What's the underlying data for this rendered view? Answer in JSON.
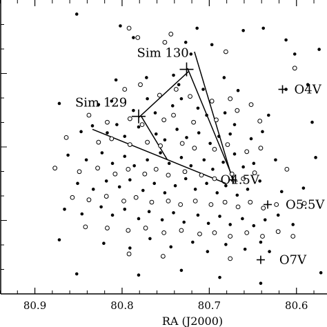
{
  "chart_data": {
    "type": "scatter",
    "title": "",
    "xlabel": "RA (J2000)",
    "ylabel": "",
    "x_reversed": true,
    "xlim": [
      80.94,
      80.565
    ],
    "ylim": [
      -70.235,
      -69.985
    ],
    "xticks": [
      {
        "value": 80.9,
        "label": "80.9"
      },
      {
        "value": 80.8,
        "label": "80.8"
      },
      {
        "value": 80.7,
        "label": "80.7"
      },
      {
        "value": 80.6,
        "label": "80.6"
      }
    ],
    "grid": false,
    "legend": "none",
    "series": [
      {
        "marker": "filled-circle",
        "points": [
          [
            80.852,
            -69.997
          ],
          [
            80.802,
            -70.007
          ],
          [
            80.787,
            -70.017
          ],
          [
            80.727,
            -70.021
          ],
          [
            80.721,
            -70.031
          ],
          [
            80.714,
            -70.009
          ],
          [
            80.697,
            -70.023
          ],
          [
            80.661,
            -70.011
          ],
          [
            80.638,
            -70.009
          ],
          [
            80.612,
            -70.019
          ],
          [
            80.602,
            -70.031
          ],
          [
            80.574,
            -70.027
          ],
          [
            80.807,
            -70.053
          ],
          [
            80.772,
            -70.051
          ],
          [
            80.741,
            -70.049
          ],
          [
            80.735,
            -70.057
          ],
          [
            80.707,
            -70.061
          ],
          [
            80.683,
            -70.051
          ],
          [
            80.667,
            -70.062
          ],
          [
            80.612,
            -70.061
          ],
          [
            80.587,
            -70.057
          ],
          [
            80.872,
            -70.073
          ],
          [
            80.827,
            -70.074
          ],
          [
            80.812,
            -70.071
          ],
          [
            80.787,
            -70.079
          ],
          [
            80.771,
            -70.069
          ],
          [
            80.762,
            -70.081
          ],
          [
            80.742,
            -70.075
          ],
          [
            80.732,
            -70.069
          ],
          [
            80.713,
            -70.077
          ],
          [
            80.703,
            -70.083
          ],
          [
            80.682,
            -70.081
          ],
          [
            80.671,
            -70.091
          ],
          [
            80.632,
            -70.083
          ],
          [
            80.582,
            -70.089
          ],
          [
            80.847,
            -70.097
          ],
          [
            80.834,
            -70.092
          ],
          [
            80.817,
            -70.098
          ],
          [
            80.806,
            -70.091
          ],
          [
            80.797,
            -70.101
          ],
          [
            80.781,
            -70.093
          ],
          [
            80.761,
            -70.099
          ],
          [
            80.751,
            -70.104
          ],
          [
            80.737,
            -70.095
          ],
          [
            80.726,
            -70.102
          ],
          [
            80.712,
            -70.098
          ],
          [
            80.699,
            -70.107
          ],
          [
            80.689,
            -70.101
          ],
          [
            80.676,
            -70.099
          ],
          [
            80.652,
            -70.103
          ],
          [
            80.639,
            -70.097
          ],
          [
            80.862,
            -70.117
          ],
          [
            80.841,
            -70.121
          ],
          [
            80.823,
            -70.115
          ],
          [
            80.811,
            -70.124
          ],
          [
            80.797,
            -70.118
          ],
          [
            80.786,
            -70.126
          ],
          [
            80.771,
            -70.121
          ],
          [
            80.756,
            -70.115
          ],
          [
            80.746,
            -70.124
          ],
          [
            80.732,
            -70.119
          ],
          [
            80.721,
            -70.126
          ],
          [
            80.706,
            -70.121
          ],
          [
            80.696,
            -70.129
          ],
          [
            80.684,
            -70.123
          ],
          [
            80.671,
            -70.116
          ],
          [
            80.661,
            -70.127
          ],
          [
            80.649,
            -70.124
          ],
          [
            80.624,
            -70.121
          ],
          [
            80.578,
            -70.119
          ],
          [
            80.851,
            -70.141
          ],
          [
            80.833,
            -70.146
          ],
          [
            80.818,
            -70.139
          ],
          [
            80.803,
            -70.144
          ],
          [
            80.791,
            -70.138
          ],
          [
            80.776,
            -70.147
          ],
          [
            80.763,
            -70.141
          ],
          [
            80.751,
            -70.149
          ],
          [
            80.739,
            -70.143
          ],
          [
            80.727,
            -70.137
          ],
          [
            80.716,
            -70.146
          ],
          [
            80.703,
            -70.141
          ],
          [
            80.691,
            -70.149
          ],
          [
            80.681,
            -70.143
          ],
          [
            80.668,
            -70.151
          ],
          [
            80.656,
            -70.146
          ],
          [
            80.642,
            -70.139
          ],
          [
            80.617,
            -70.148
          ],
          [
            80.592,
            -70.145
          ],
          [
            80.866,
            -70.163
          ],
          [
            80.846,
            -70.167
          ],
          [
            80.824,
            -70.161
          ],
          [
            80.811,
            -70.168
          ],
          [
            80.797,
            -70.163
          ],
          [
            80.781,
            -70.171
          ],
          [
            80.769,
            -70.165
          ],
          [
            80.754,
            -70.172
          ],
          [
            80.741,
            -70.166
          ],
          [
            80.729,
            -70.174
          ],
          [
            80.713,
            -70.168
          ],
          [
            80.701,
            -70.175
          ],
          [
            80.688,
            -70.169
          ],
          [
            80.676,
            -70.176
          ],
          [
            80.662,
            -70.171
          ],
          [
            80.649,
            -70.177
          ],
          [
            80.636,
            -70.172
          ],
          [
            80.621,
            -70.168
          ],
          [
            80.604,
            -70.176
          ],
          [
            80.872,
            -70.189
          ],
          [
            80.821,
            -70.192
          ],
          [
            80.791,
            -70.196
          ],
          [
            80.768,
            -70.188
          ],
          [
            80.744,
            -70.195
          ],
          [
            80.719,
            -70.191
          ],
          [
            80.702,
            -70.199
          ],
          [
            80.681,
            -70.193
          ],
          [
            80.659,
            -70.197
          ],
          [
            80.641,
            -70.191
          ],
          [
            80.631,
            -70.199
          ],
          [
            80.852,
            -70.218
          ],
          [
            80.781,
            -70.219
          ],
          [
            80.732,
            -70.215
          ],
          [
            80.688,
            -70.221
          ],
          [
            80.641,
            -70.226
          ],
          [
            80.572,
            -70.217
          ]
        ]
      },
      {
        "marker": "open-circle",
        "points": [
          [
            80.792,
            -70.009
          ],
          [
            80.782,
            -70.017
          ],
          [
            80.751,
            -70.021
          ],
          [
            80.744,
            -70.014
          ],
          [
            80.681,
            -70.029
          ],
          [
            80.602,
            -70.043
          ],
          [
            80.797,
            -70.061
          ],
          [
            80.779,
            -70.057
          ],
          [
            80.757,
            -70.066
          ],
          [
            80.738,
            -70.061
          ],
          [
            80.722,
            -70.067
          ],
          [
            80.697,
            -70.071
          ],
          [
            80.676,
            -70.069
          ],
          [
            80.652,
            -70.074
          ],
          [
            80.838,
            -70.083
          ],
          [
            80.817,
            -70.089
          ],
          [
            80.791,
            -70.086
          ],
          [
            80.777,
            -70.091
          ],
          [
            80.752,
            -70.087
          ],
          [
            80.741,
            -70.083
          ],
          [
            80.718,
            -70.089
          ],
          [
            80.692,
            -70.087
          ],
          [
            80.668,
            -70.079
          ],
          [
            80.642,
            -70.088
          ],
          [
            80.864,
            -70.102
          ],
          [
            80.827,
            -70.106
          ],
          [
            80.812,
            -70.103
          ],
          [
            80.791,
            -70.108
          ],
          [
            80.771,
            -70.106
          ],
          [
            80.756,
            -70.109
          ],
          [
            80.731,
            -70.107
          ],
          [
            80.717,
            -70.111
          ],
          [
            80.694,
            -70.112
          ],
          [
            80.679,
            -70.108
          ],
          [
            80.657,
            -70.114
          ],
          [
            80.641,
            -70.111
          ],
          [
            80.877,
            -70.128
          ],
          [
            80.849,
            -70.131
          ],
          [
            80.828,
            -70.128
          ],
          [
            80.808,
            -70.133
          ],
          [
            80.793,
            -70.129
          ],
          [
            80.774,
            -70.133
          ],
          [
            80.761,
            -70.129
          ],
          [
            80.747,
            -70.134
          ],
          [
            80.728,
            -70.131
          ],
          [
            80.709,
            -70.134
          ],
          [
            80.694,
            -70.137
          ],
          [
            80.674,
            -70.133
          ],
          [
            80.661,
            -70.137
          ],
          [
            80.648,
            -70.132
          ],
          [
            80.611,
            -70.129
          ],
          [
            80.857,
            -70.153
          ],
          [
            80.838,
            -70.155
          ],
          [
            80.818,
            -70.152
          ],
          [
            80.798,
            -70.156
          ],
          [
            80.784,
            -70.153
          ],
          [
            80.766,
            -70.157
          ],
          [
            80.747,
            -70.156
          ],
          [
            80.733,
            -70.159
          ],
          [
            80.716,
            -70.156
          ],
          [
            80.698,
            -70.159
          ],
          [
            80.682,
            -70.157
          ],
          [
            80.667,
            -70.161
          ],
          [
            80.653,
            -70.157
          ],
          [
            80.638,
            -70.162
          ],
          [
            80.623,
            -70.159
          ],
          [
            80.591,
            -70.158
          ],
          [
            80.842,
            -70.178
          ],
          [
            80.817,
            -70.179
          ],
          [
            80.793,
            -70.181
          ],
          [
            80.773,
            -70.179
          ],
          [
            80.752,
            -70.183
          ],
          [
            80.732,
            -70.181
          ],
          [
            80.711,
            -70.184
          ],
          [
            80.694,
            -70.183
          ],
          [
            80.676,
            -70.186
          ],
          [
            80.657,
            -70.183
          ],
          [
            80.639,
            -70.186
          ],
          [
            80.621,
            -70.182
          ],
          [
            80.604,
            -70.186
          ],
          [
            80.792,
            -70.201
          ],
          [
            80.753,
            -70.203
          ],
          [
            80.676,
            -70.205
          ]
        ]
      }
    ],
    "lines": [
      {
        "from": [
          80.725,
          -70.043
        ],
        "to": [
          80.672,
          -70.138
        ]
      },
      {
        "from": [
          80.724,
          -70.046
        ],
        "to": [
          80.781,
          -70.085
        ]
      },
      {
        "from": [
          80.717,
          -70.029
        ],
        "to": [
          80.672,
          -70.141
        ]
      },
      {
        "from": [
          80.834,
          -70.095
        ],
        "to": [
          80.681,
          -70.141
        ]
      },
      {
        "from": [
          80.778,
          -70.084
        ],
        "to": [
          80.748,
          -70.121
        ]
      }
    ],
    "markers": [
      {
        "x": 80.726,
        "y": -70.044,
        "label": "Sim 130"
      },
      {
        "x": 80.781,
        "y": -70.084,
        "label": "Sim 129"
      },
      {
        "x": 80.616,
        "y": -70.061,
        "label": "O4V"
      },
      {
        "x": 80.673,
        "y": -70.138,
        "label": "O4.5V"
      },
      {
        "x": 80.633,
        "y": -70.159,
        "label": "O5.5V"
      },
      {
        "x": 80.641,
        "y": -70.206,
        "label": "O7V"
      }
    ]
  }
}
